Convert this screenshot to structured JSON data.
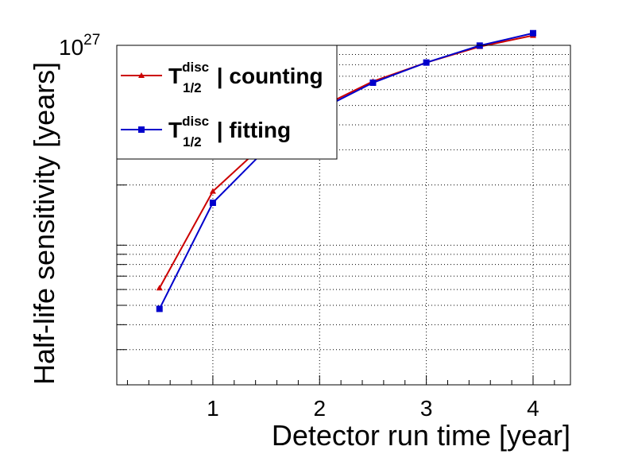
{
  "chart_data": {
    "type": "line",
    "xlabel": "Detector run time [year]",
    "ylabel": "Half-life sensitivity [years]",
    "xlim": [
      0.1,
      4.35
    ],
    "ylim": [
      2e+25,
      1e+27
    ],
    "y_scale": "log",
    "y_top_label": {
      "base": "10",
      "exponent": "27"
    },
    "x_ticks": [
      "1",
      "2",
      "3",
      "4"
    ],
    "grid": true,
    "legend": "top-left",
    "series": [
      {
        "name_main": "T",
        "name_sup": "disc",
        "name_sub": "1/2",
        "name_rest": " | counting",
        "color": "#cc0000",
        "marker": "triangle",
        "x": [
          0.5,
          1.0,
          1.5,
          2.0,
          2.5,
          3.0,
          3.5,
          4.0
        ],
        "y": [
          6.1e+25,
          1.86e+26,
          3.27e+26,
          4.88e+26,
          6.6e+26,
          8.2e+26,
          9.85e+26,
          1.12e+27
        ]
      },
      {
        "name_main": "T",
        "name_sup": "disc",
        "name_sub": "1/2",
        "name_rest": " | fitting",
        "color": "#0000cc",
        "marker": "square",
        "x": [
          0.5,
          1.0,
          1.5,
          2.0,
          2.5,
          3.0,
          3.5,
          4.0
        ],
        "y": [
          4.8e+25,
          1.63e+26,
          3.03e+26,
          4.76e+26,
          6.5e+26,
          8.2e+26,
          9.97e+26,
          1.15e+27
        ]
      }
    ]
  }
}
